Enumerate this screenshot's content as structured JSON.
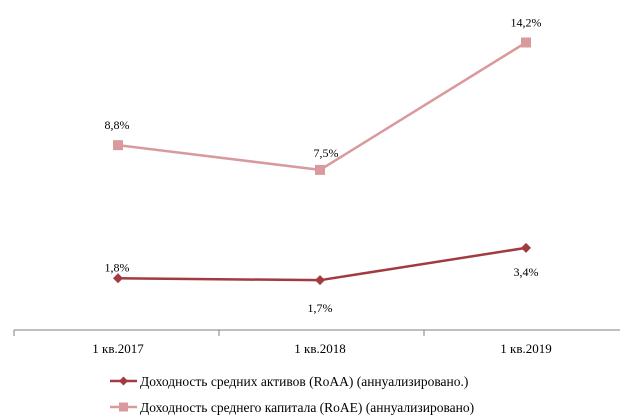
{
  "chart_data": {
    "type": "line",
    "categories": [
      "1 кв.2017",
      "1 кв.2018",
      "1 кв.2019"
    ],
    "ylim": [
      0,
      16
    ],
    "grid": false,
    "legend_position": "bottom",
    "series": [
      {
        "name": "Доходность средних активов (RoAA) (аннуализировано.)",
        "values": [
          1.8,
          1.7,
          3.4
        ],
        "labels": [
          "1,8%",
          "1,7%",
          "3,4%"
        ],
        "color": "#a23b3f",
        "marker": "diamond"
      },
      {
        "name": "Доходность среднего капитала (RoAE) (аннуализировано)",
        "values": [
          8.8,
          7.5,
          14.2
        ],
        "labels": [
          "8,8%",
          "7,5%",
          "14,2%"
        ],
        "color": "#d99a9d",
        "marker": "square"
      }
    ]
  }
}
